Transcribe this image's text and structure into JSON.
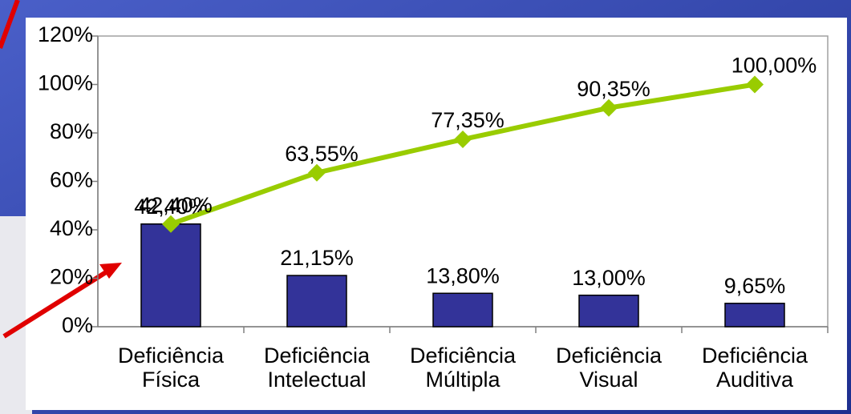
{
  "chart_data": {
    "type": "bar",
    "categories": [
      [
        "Deficiência",
        "Física"
      ],
      [
        "Deficiência",
        "Intelectual"
      ],
      [
        "Deficiência",
        "Múltipla"
      ],
      [
        "Deficiência",
        "Visual"
      ],
      [
        "Deficiência",
        "Auditiva"
      ]
    ],
    "series": [
      {
        "type": "bar",
        "color": "#333399",
        "values": [
          42.4,
          21.15,
          13.8,
          13.0,
          9.65
        ],
        "value_labels": [
          "42,40%",
          "21,15%",
          "13,80%",
          "13,00%",
          "9,65%"
        ]
      },
      {
        "type": "line",
        "color": "#99cc00",
        "values": [
          42.4,
          63.55,
          77.35,
          90.35,
          100.0
        ],
        "value_labels": [
          "42,40%",
          "63,55%",
          "77,35%",
          "90,35%",
          "100,00%"
        ]
      }
    ],
    "ylim": [
      0,
      120
    ],
    "yticks": [
      {
        "value": 0,
        "label": "0%"
      },
      {
        "value": 20,
        "label": "20%"
      },
      {
        "value": 40,
        "label": "40%"
      },
      {
        "value": 60,
        "label": "60%"
      },
      {
        "value": 80,
        "label": "80%"
      },
      {
        "value": 100,
        "label": "100%"
      },
      {
        "value": 120,
        "label": "120%"
      }
    ]
  }
}
